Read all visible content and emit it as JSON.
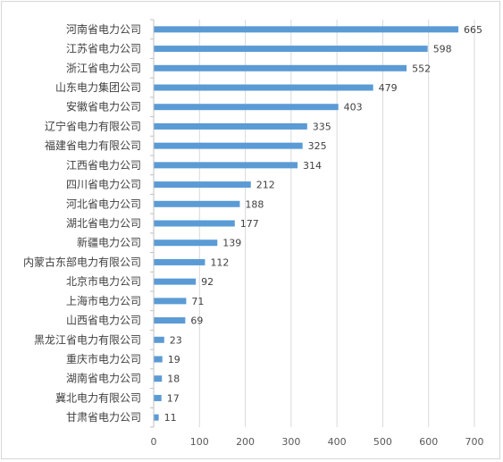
{
  "chart_data": {
    "type": "bar",
    "orientation": "horizontal",
    "categories": [
      "河南省电力公司",
      "江苏省电力公司",
      "浙江省电力公司",
      "山东电力集团公司",
      "安徽省电力公司",
      "辽宁省电力有限公司",
      "福建省电力有限公司",
      "江西省电力公司",
      "四川省电力公司",
      "河北省电力公司",
      "湖北省电力公司",
      "新疆电力公司",
      "内蒙古东部电力有限公司",
      "北京市电力公司",
      "上海市电力公司",
      "山西省电力公司",
      "黑龙江省电力有限公司",
      "重庆市电力公司",
      "湖南省电力公司",
      "冀北电力有限公司",
      "甘肃省电力公司"
    ],
    "values": [
      665,
      598,
      552,
      479,
      403,
      335,
      325,
      314,
      212,
      188,
      177,
      139,
      112,
      92,
      71,
      69,
      23,
      19,
      18,
      17,
      11
    ],
    "xlim": [
      0,
      700
    ],
    "xticks": [
      "0",
      "100",
      "200",
      "300",
      "400",
      "500",
      "600",
      "700"
    ],
    "grid": "vertical",
    "bar_color": "#5b9bd5",
    "data_labels": true
  }
}
